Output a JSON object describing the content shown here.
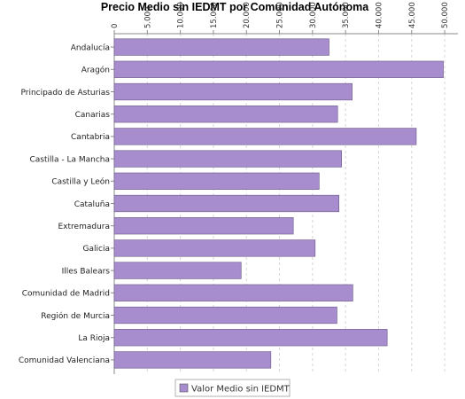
{
  "chart_data": {
    "type": "bar",
    "orientation": "horizontal",
    "title": "Precio Medio sin IEDMT por Comunidad Autónoma",
    "xlabel": "",
    "ylabel": "",
    "xlim": [
      0,
      52000
    ],
    "tick_values": [
      0,
      5000,
      10000,
      15000,
      20000,
      25000,
      30000,
      35000,
      40000,
      45000,
      50000
    ],
    "tick_labels": [
      "0",
      "5.000",
      "10.000",
      "15.000",
      "20.000",
      "25.000",
      "30.000",
      "35.000",
      "40.000",
      "45.000",
      "50.000"
    ],
    "axis_position": "top",
    "grid": true,
    "legend_position": "bottom-center",
    "categories": [
      "Andalucía",
      "Aragón",
      "Principado de Asturias",
      "Canarias",
      "Cantabria",
      "Castilla - La Mancha",
      "Castilla y León",
      "Cataluña",
      "Extremadura",
      "Galicia",
      "Illes Balears",
      "Comunidad de Madrid",
      "Región de Murcia",
      "La Rioja",
      "Comunidad Valenciana"
    ],
    "series": [
      {
        "name": "Valor Medio sin IEDMT",
        "color": "#a78cce",
        "values": [
          32500,
          49800,
          36000,
          33800,
          45700,
          34400,
          31000,
          34000,
          27100,
          30400,
          19200,
          36100,
          33700,
          41300,
          23700
        ]
      }
    ]
  }
}
